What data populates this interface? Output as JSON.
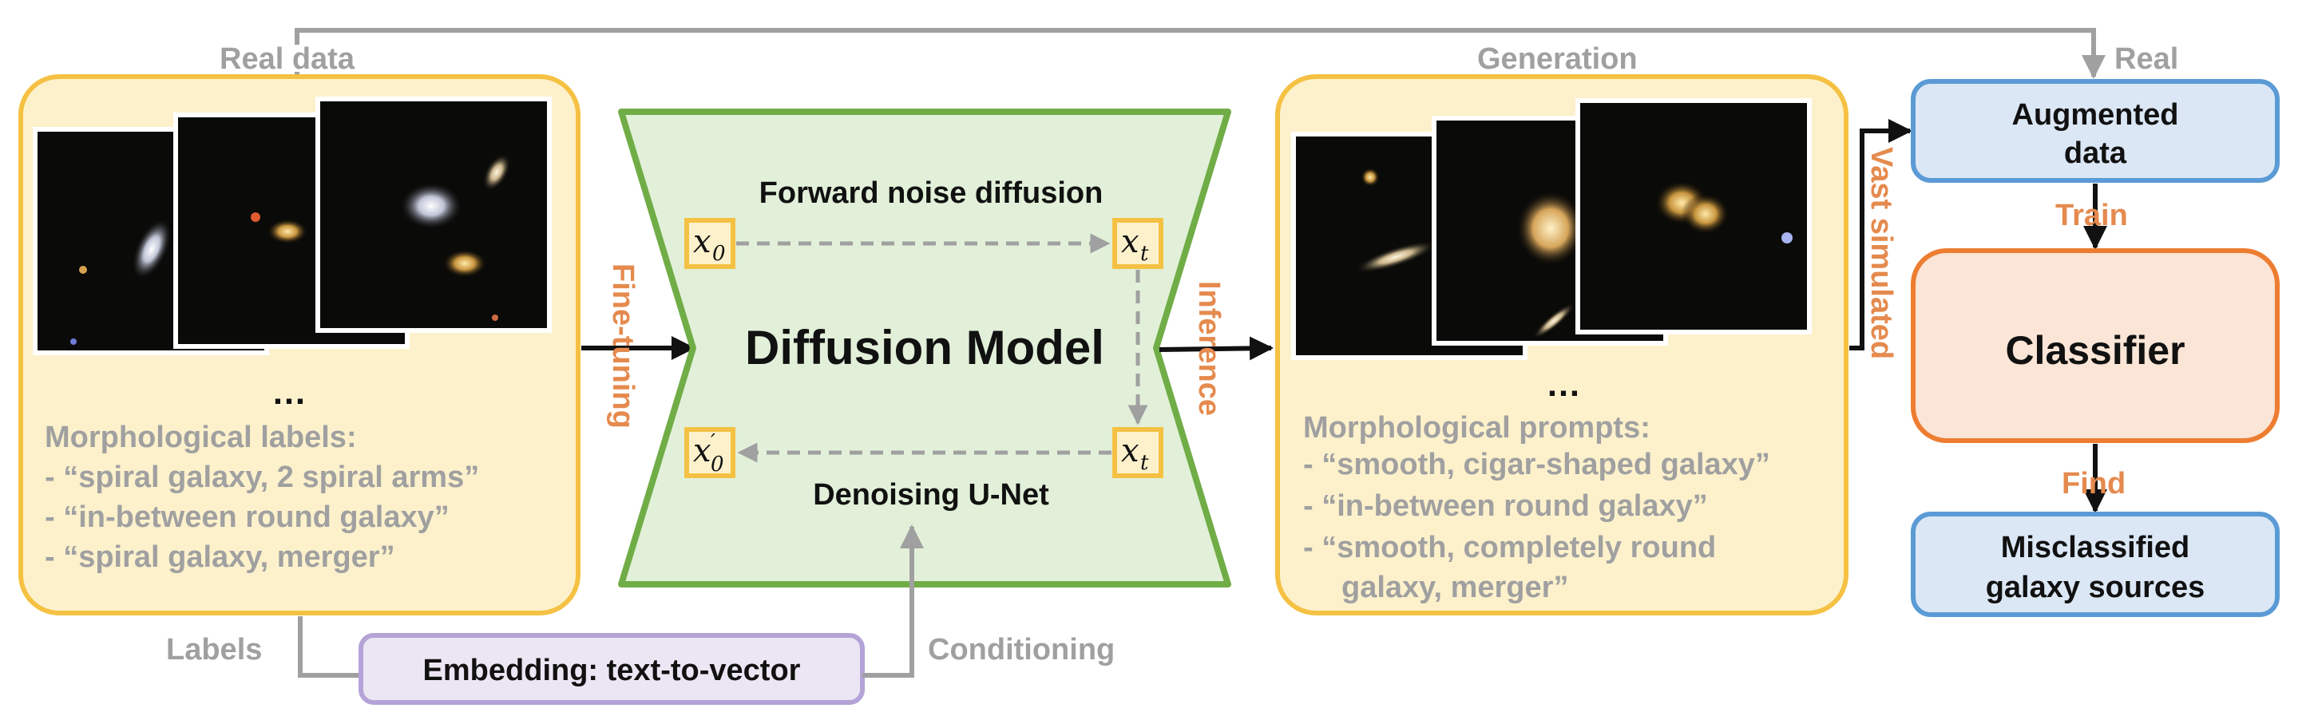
{
  "top_labels": {
    "real_data": "Real data",
    "generation": "Generation",
    "real": "Real"
  },
  "left_panel": {
    "ellipsis": "…",
    "labels_title": "Morphological labels:",
    "labels": [
      "- “spiral galaxy, 2 spiral arms”",
      "- “in-between round galaxy”",
      "- “spiral galaxy, merger”"
    ]
  },
  "arrows": {
    "fine_tuning": "Fine-tuning",
    "inference": "Inference",
    "vast_simulated": "Vast simulated",
    "train": "Train",
    "find": "Find",
    "labels": "Labels",
    "conditioning": "Conditioning"
  },
  "diffusion": {
    "forward": "Forward noise diffusion",
    "title": "Diffusion Model",
    "denoise": "Denoising U-Net",
    "x0": "x",
    "x0_sub": "0",
    "xt": "x",
    "xt_sub": "t",
    "x0p": "x",
    "x0p_sub": "0",
    "x0p_prime": "′",
    "xt2": "x",
    "xt2_sub": "t"
  },
  "embedding": "Embedding: text-to-vector",
  "right_panel": {
    "ellipsis": "…",
    "prompts_title": "Morphological prompts:",
    "prompts": [
      "- “smooth, cigar-shaped galaxy”",
      "- “in-between round galaxy”",
      "- “smooth, completely round",
      "galaxy, merger”"
    ]
  },
  "boxes": {
    "augmented_line1": "Augmented",
    "augmented_line2": "data",
    "classifier": "Classifier",
    "misclass_line1": "Misclassified",
    "misclass_line2": "galaxy sources"
  },
  "colors": {
    "panel_fill": "#fdf1cc",
    "panel_stroke": "#f5c143",
    "diffusion_fill": "#e2f0d9",
    "diffusion_stroke": "#70ad47",
    "blue_fill": "#dbe7f5",
    "blue_stroke": "#5b9bd5",
    "classifier_fill": "#fbe5d6",
    "classifier_stroke": "#ed7d31",
    "embed_fill": "#ece6f4",
    "embed_stroke": "#b4a3d6",
    "orange_text": "#e58a4e",
    "grey": "#a0a0a0"
  }
}
